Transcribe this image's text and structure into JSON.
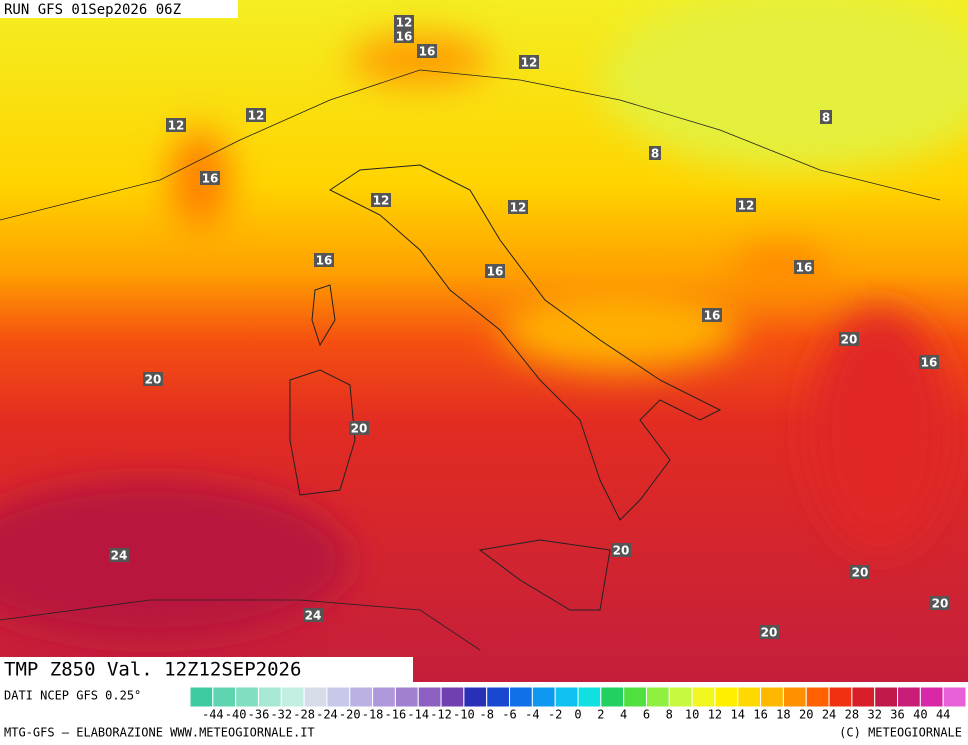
{
  "header": {
    "run": "RUN GFS 01Sep2026 06Z"
  },
  "map": {
    "contour_labels": [
      12,
      16,
      16,
      12,
      12,
      12,
      8,
      8,
      16,
      12,
      12,
      12,
      16,
      16,
      16,
      16,
      20,
      16,
      20,
      20,
      20,
      24,
      20,
      20,
      24,
      20
    ]
  },
  "caption": {
    "title": "TMP Z850 Val. 12Z12SEP2026",
    "source": "DATI NCEP GFS 0.25°"
  },
  "colorbar": {
    "colors": [
      "#3ccaa0",
      "#5ed4b0",
      "#82dec2",
      "#a6e8d4",
      "#c4eee2",
      "#d6dce8",
      "#c8c8e8",
      "#bcb0e4",
      "#b098dc",
      "#a080d0",
      "#8c60c0",
      "#7040b0",
      "#2830b8",
      "#1848d0",
      "#1070e8",
      "#1098f0",
      "#10c0f0",
      "#10e0e0",
      "#20d060",
      "#50e040",
      "#90f040",
      "#c8f840",
      "#f0f820",
      "#fff000",
      "#ffd800",
      "#ffb800",
      "#ff9000",
      "#ff6000",
      "#f03010",
      "#d81e28",
      "#c01848",
      "#c81e78",
      "#d828a8",
      "#e860d8"
    ],
    "labels": [
      -44,
      -40,
      -36,
      -32,
      -28,
      -24,
      -20,
      -18,
      -16,
      -14,
      -12,
      -10,
      -8,
      -6,
      -4,
      -2,
      0,
      2,
      4,
      6,
      8,
      10,
      12,
      14,
      16,
      18,
      20,
      24,
      28,
      32,
      36,
      40,
      44
    ]
  },
  "footer": {
    "left": "MTG-GFS — ELABORAZIONE WWW.METEOGIORNALE.IT",
    "right": "(C) METEOGIORNALE"
  }
}
